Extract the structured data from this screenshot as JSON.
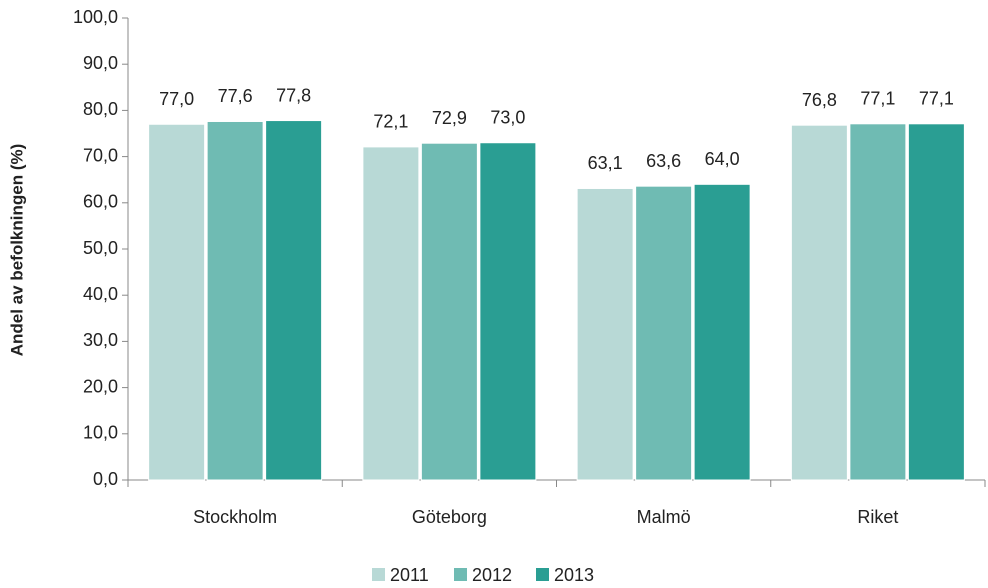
{
  "chart_data": {
    "type": "bar",
    "y_label": "Andel av befolkningen (%)",
    "categories": [
      "Stockholm",
      "Göteborg",
      "Malmö",
      "Riket"
    ],
    "series": [
      {
        "name": "2011",
        "color": "#b8d9d6",
        "values": [
          77.0,
          72.1,
          63.1,
          76.8
        ],
        "value_labels": [
          "77,0",
          "72,1",
          "63,1",
          "76,8"
        ]
      },
      {
        "name": "2012",
        "color": "#6fbbb3",
        "values": [
          77.6,
          72.9,
          63.6,
          77.1
        ],
        "value_labels": [
          "77,6",
          "72,9",
          "63,6",
          "77,1"
        ]
      },
      {
        "name": "2013",
        "color": "#2a9e93",
        "values": [
          77.8,
          73.0,
          64.0,
          77.1
        ],
        "value_labels": [
          "77,8",
          "73,0",
          "64,0",
          "77,1"
        ]
      }
    ],
    "ylim": [
      0,
      100
    ],
    "yticks": [
      {
        "value": 0,
        "label": "0,0"
      },
      {
        "value": 10,
        "label": "10,0"
      },
      {
        "value": 20,
        "label": "20,0"
      },
      {
        "value": 30,
        "label": "30,0"
      },
      {
        "value": 40,
        "label": "40,0"
      },
      {
        "value": 50,
        "label": "50,0"
      },
      {
        "value": 60,
        "label": "60,0"
      },
      {
        "value": 70,
        "label": "70,0"
      },
      {
        "value": 80,
        "label": "80,0"
      },
      {
        "value": 90,
        "label": "90,0"
      },
      {
        "value": 100,
        "label": "100,0"
      }
    ],
    "legend": "bottom"
  }
}
